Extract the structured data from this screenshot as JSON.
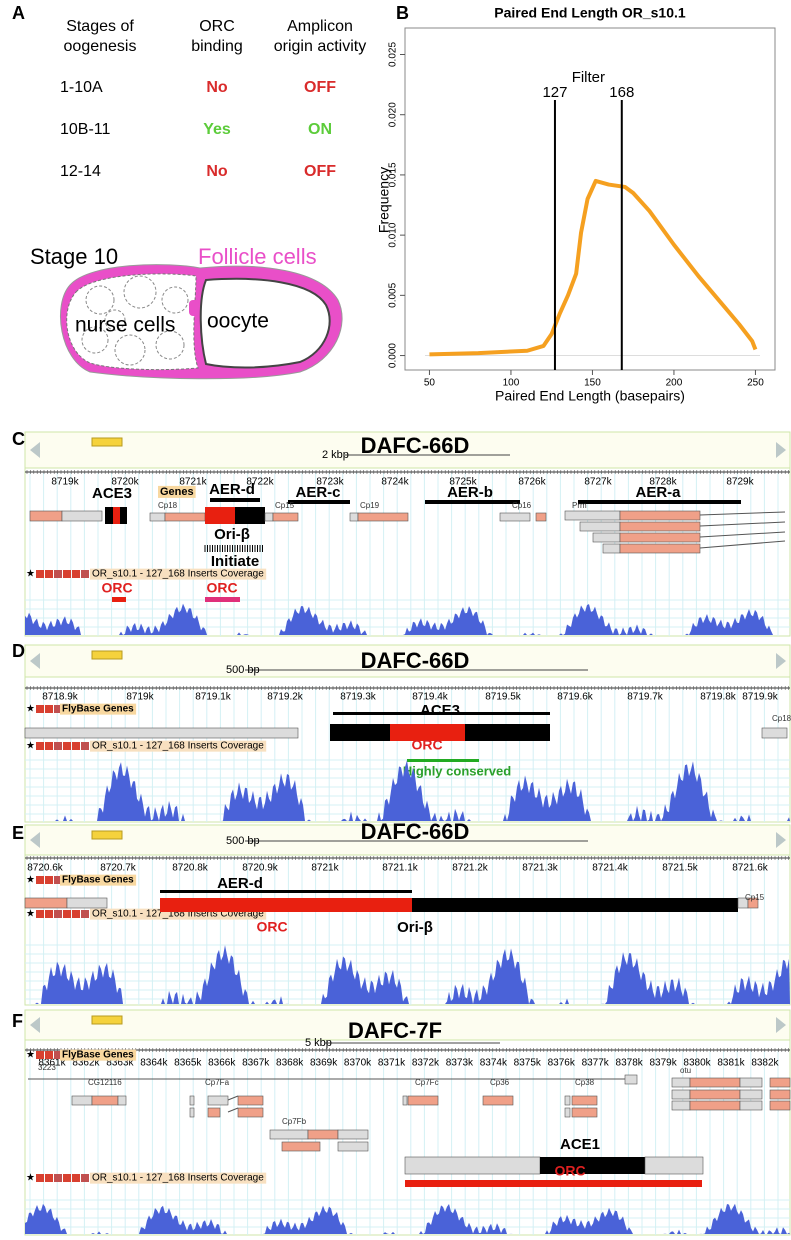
{
  "panel_labels": [
    "A",
    "B",
    "C",
    "D",
    "E",
    "F"
  ],
  "panel_a": {
    "table": {
      "headers": [
        [
          "Stages of",
          "oogenesis"
        ],
        [
          "ORC",
          "binding"
        ],
        [
          "Amplicon",
          "origin activity"
        ]
      ],
      "rows": [
        [
          "1-10A",
          "No",
          "OFF"
        ],
        [
          "10B-11",
          "Yes",
          "ON"
        ],
        [
          "12-14",
          "No",
          "OFF"
        ]
      ]
    },
    "stage": "Stage 10",
    "follicle": "Follicle cells",
    "nurse": "nurse cells",
    "oocyte": "oocyte"
  },
  "chart_data": {
    "type": "line",
    "title": "Paired End Length OR_s10.1",
    "x_label": "Paired End Length (basepairs)",
    "y_label": "Frequency",
    "color": "#f5a020",
    "x": [
      50,
      80,
      110,
      120,
      125,
      130,
      135,
      140,
      143,
      147,
      152,
      160,
      170,
      175,
      185,
      200,
      215,
      230,
      240,
      248,
      250
    ],
    "values": [
      0.0001,
      0.0002,
      0.0004,
      0.0008,
      0.0018,
      0.0035,
      0.005,
      0.0068,
      0.0102,
      0.013,
      0.0145,
      0.0142,
      0.014,
      0.0135,
      0.012,
      0.0092,
      0.0066,
      0.0042,
      0.0026,
      0.0012,
      0.0005
    ],
    "xlim": [
      35,
      262
    ],
    "ylim": [
      -0.0012,
      0.0272
    ],
    "xticks": [
      50,
      100,
      150,
      200,
      250
    ],
    "yticks": [
      {
        "value": 0,
        "label": "0.000"
      },
      0.005,
      {
        "value": 0.01,
        "label": "0.010"
      },
      0.015,
      {
        "value": 0.02,
        "label": "0.020"
      },
      0.025
    ],
    "filter_label": "Filter",
    "filter_lines": [
      127,
      168
    ]
  },
  "browser_panels": [
    {
      "title": "DAFC-66D",
      "scale": "2 kbp",
      "genes_track": "Genes",
      "ticks": [
        "8719k",
        "8720k",
        "8721k",
        "8722k",
        "8723k",
        "8724k",
        "8725k",
        "8726k",
        "8727k",
        "8728k",
        "8729k"
      ],
      "labels": [
        "ACE3",
        "AER-d",
        "AER-c",
        "AER-b",
        "AER-a",
        "Cp18",
        "Cp15",
        "Cp19",
        "Cp16",
        "Prm",
        "Ori-β",
        "Initiate",
        "ORC",
        "ORC"
      ],
      "coverage_track": "OR_s10.1 - 127_168 Inserts Coverage"
    },
    {
      "title": "DAFC-66D",
      "scale": "500 bp",
      "genes_track": "FlyBase Genes",
      "ticks": [
        "8718.9k",
        "8719k",
        "8719.1k",
        "8719.2k",
        "8719.3k",
        "8719.4k",
        "8719.5k",
        "8719.6k",
        "8719.7k",
        "8719.8k",
        "8719.9k"
      ],
      "labels": [
        "ACE3",
        "ORC",
        "Highly conserved",
        "Cp18"
      ],
      "coverage_track": "OR_s10.1 - 127_168 Inserts Coverage"
    },
    {
      "title": "DAFC-66D",
      "scale": "500 bp",
      "genes_track": "FlyBase Genes",
      "ticks": [
        "8720.6k",
        "8720.7k",
        "8720.8k",
        "8720.9k",
        "8721k",
        "8721.1k",
        "8721.2k",
        "8721.3k",
        "8721.4k",
        "8721.5k",
        "8721.6k"
      ],
      "labels": [
        "AER-d",
        "Cp15",
        "ORC",
        "Ori-β"
      ],
      "coverage_track": "OR_s10.1 - 127_168 Inserts Coverage"
    },
    {
      "title": "DAFC-7F",
      "scale": "5 kbp",
      "genes_track": "FlyBase Genes",
      "ticks": [
        "8361k",
        "8362k",
        "8363k",
        "8364k",
        "8365k",
        "8366k",
        "8367k",
        "8368k",
        "8369k",
        "8370k",
        "8371k",
        "8372k",
        "8373k",
        "8374k",
        "8375k",
        "8376k",
        "8377k",
        "8378k",
        "8379k",
        "8380k",
        "8381k",
        "8382k"
      ],
      "labels": [
        "3223",
        "CG12116",
        "Cp7Fa",
        "Cp7Fc",
        "Cp36",
        "Cp38",
        "otu",
        "Cp7Fb",
        "ACE1",
        "ORC"
      ],
      "coverage_track": "OR_s10.1 - 127_168 Inserts Coverage"
    }
  ]
}
